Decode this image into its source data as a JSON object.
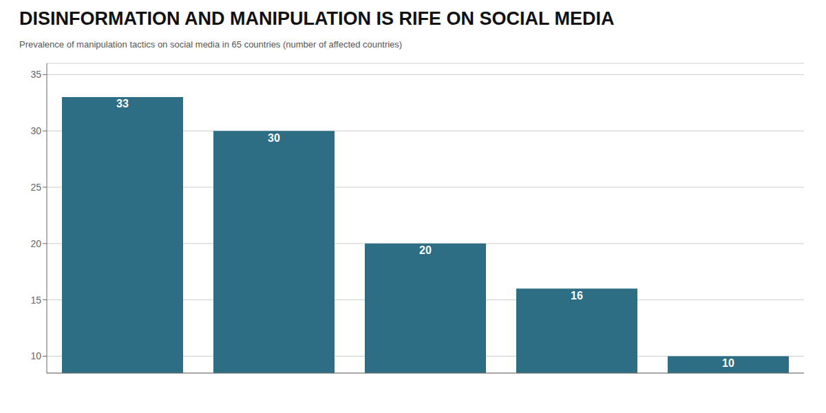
{
  "chart_data": {
    "type": "bar",
    "title": "DISINFORMATION AND MANIPULATION IS RIFE ON SOCIAL MEDIA",
    "subtitle": "Prevalence of manipulation tactics on social media in 65 countries (number of affected countries)",
    "categories": [
      null,
      null,
      null,
      null,
      null
    ],
    "values": [
      33,
      30,
      20,
      16,
      10
    ],
    "color": "#2d6e85",
    "ylim": [
      8.5,
      36
    ],
    "yticks": [
      10,
      15,
      20,
      25,
      30,
      35
    ],
    "grid": true,
    "data_labels": true,
    "tick_labels": "y"
  }
}
